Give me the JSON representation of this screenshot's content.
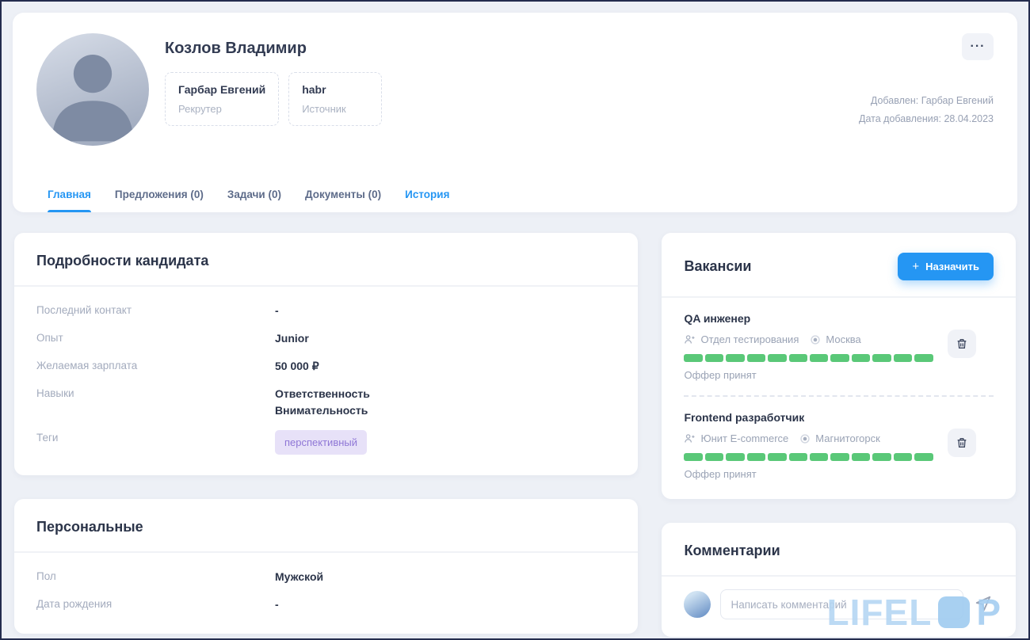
{
  "colors": {
    "accent_blue": "#2596f3",
    "progress_green": "#5ac878",
    "tag_bg": "#e7e1f8",
    "tag_text": "#8f77d6"
  },
  "header": {
    "name": "Козлов Владимир",
    "recruiter": {
      "value": "Гарбар Евгений",
      "label": "Рекрутер"
    },
    "source": {
      "value": "habr",
      "label": "Источник"
    },
    "added_by": "Добавлен: Гарбар Евгений",
    "added_date": "Дата добавления: 28.04.2023",
    "more_icon": "···",
    "tabs": [
      {
        "label": "Главная",
        "active": true
      },
      {
        "label": "Предложения (0)",
        "active": false
      },
      {
        "label": "Задачи (0)",
        "active": false
      },
      {
        "label": "Документы (0)",
        "active": false
      },
      {
        "label": "История",
        "active": false
      }
    ]
  },
  "details": {
    "title": "Подробности кандидата",
    "rows": {
      "last_contact": {
        "label": "Последний контакт",
        "value": "-"
      },
      "experience": {
        "label": "Опыт",
        "value": "Junior"
      },
      "salary": {
        "label": "Желаемая зарплата",
        "value": "50 000 ₽"
      },
      "skills": {
        "label": "Навыки",
        "values": [
          "Ответственность",
          "Внимательность"
        ]
      },
      "tags": {
        "label": "Теги",
        "tag": "перспективный"
      }
    }
  },
  "personal": {
    "title": "Персональные",
    "rows": {
      "gender": {
        "label": "Пол",
        "value": "Мужской"
      },
      "birth_date": {
        "label": "Дата рождения",
        "value": "-"
      }
    }
  },
  "vacancies": {
    "title": "Вакансии",
    "assign_label": "Назначить",
    "assign_icon": "+",
    "items": [
      {
        "title": "QA инженер",
        "department": "Отдел тестирования",
        "city": "Москва",
        "status": "Оффер принят",
        "progress": {
          "total": 12,
          "filled": 12
        }
      },
      {
        "title": "Frontend разработчик",
        "department": "Юнит E-commerce",
        "city": "Магнитогорск",
        "status": "Оффер принят",
        "progress": {
          "total": 12,
          "filled": 12
        }
      }
    ]
  },
  "comments": {
    "title": "Комментарии",
    "placeholder": "Написать комментарий"
  },
  "watermark": {
    "text": "LIFEL",
    "suffix": "P"
  }
}
